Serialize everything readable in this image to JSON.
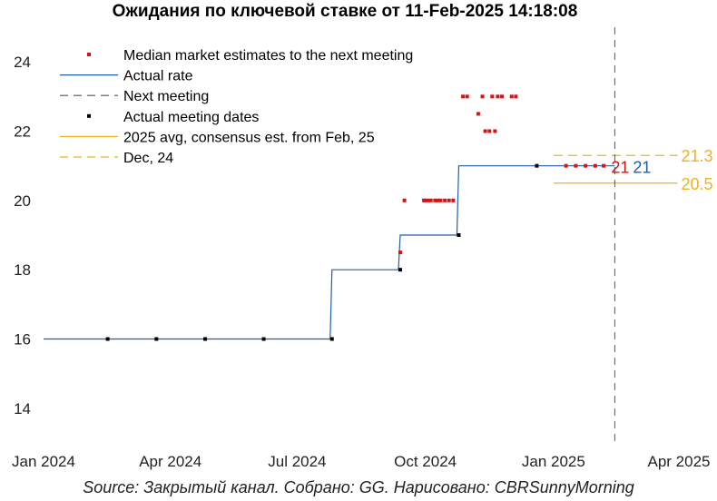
{
  "title": "Ожидания по ключевой ставке от 11-Feb-2025 14:18:08",
  "source": "Source: Закрытый канал. Собрано: GG. Нарисовано: CBRSunnyMorning",
  "chart_data": {
    "type": "line",
    "x_axis": {
      "ticks": [
        "2024-01-01",
        "2024-04-01",
        "2024-07-01",
        "2024-10-01",
        "2025-01-01",
        "2025-04-01"
      ],
      "tick_labels": [
        "Jan 2024",
        "Apr 2024",
        "Jul 2024",
        "Oct 2024",
        "Jan 2025",
        "Apr 2025"
      ],
      "range": [
        "2024-01-01",
        "2025-04-01"
      ]
    },
    "y_axis": {
      "ticks": [
        14,
        16,
        18,
        20,
        22,
        24
      ],
      "range": [
        13,
        25
      ]
    },
    "grid": false,
    "legend_placement": "top-left",
    "colors": {
      "median_estimates": "#dd1111",
      "actual_rate": "#1f5fa8",
      "next_meeting": "#555555",
      "meeting_dates": "#000000",
      "avg_consensus": "#f0b020",
      "dec24": "#f0b020",
      "annotation_red": "#dd1111",
      "annotation_blue": "#1f5fa8"
    },
    "legend": [
      {
        "label": "Median market estimates to the next meeting",
        "style": "marker",
        "color_key": "median_estimates"
      },
      {
        "label": "Actual rate",
        "style": "solid",
        "color_key": "actual_rate"
      },
      {
        "label": "Next meeting",
        "style": "dashed",
        "color_key": "next_meeting"
      },
      {
        "label": "Actual meeting dates",
        "style": "marker",
        "color_key": "meeting_dates"
      },
      {
        "label": "2025 avg, consensus est. from Feb, 25",
        "style": "solid",
        "color_key": "avg_consensus"
      },
      {
        "label": "Dec, 24",
        "style": "dashed",
        "color_key": "dec24"
      }
    ],
    "series": [
      {
        "name": "Actual rate",
        "steps": [
          {
            "date": "2024-01-01",
            "value": 16
          },
          {
            "date": "2024-07-26",
            "value": 18
          },
          {
            "date": "2024-09-13",
            "value": 19
          },
          {
            "date": "2024-10-25",
            "value": 21
          },
          {
            "date": "2025-02-14",
            "value": 21
          }
        ]
      },
      {
        "name": "Actual meeting dates",
        "points": [
          {
            "date": "2024-02-16",
            "value": 16
          },
          {
            "date": "2024-03-22",
            "value": 16
          },
          {
            "date": "2024-04-26",
            "value": 16
          },
          {
            "date": "2024-06-07",
            "value": 16
          },
          {
            "date": "2024-07-26",
            "value": 16
          },
          {
            "date": "2024-09-13",
            "value": 18
          },
          {
            "date": "2024-10-25",
            "value": 19
          },
          {
            "date": "2024-12-20",
            "value": 21
          }
        ]
      },
      {
        "name": "Median market estimates to the next meeting",
        "points": [
          {
            "date": "2024-09-13",
            "value": 18.5
          },
          {
            "date": "2024-09-16",
            "value": 20
          },
          {
            "date": "2024-09-30",
            "value": 20
          },
          {
            "date": "2024-10-01",
            "value": 20
          },
          {
            "date": "2024-10-03",
            "value": 20
          },
          {
            "date": "2024-10-05",
            "value": 20
          },
          {
            "date": "2024-10-08",
            "value": 20
          },
          {
            "date": "2024-10-10",
            "value": 20
          },
          {
            "date": "2024-10-12",
            "value": 20
          },
          {
            "date": "2024-10-15",
            "value": 20
          },
          {
            "date": "2024-10-18",
            "value": 20
          },
          {
            "date": "2024-10-21",
            "value": 20
          },
          {
            "date": "2024-10-28",
            "value": 23
          },
          {
            "date": "2024-10-31",
            "value": 23
          },
          {
            "date": "2024-11-08",
            "value": 22.5
          },
          {
            "date": "2024-11-11",
            "value": 23
          },
          {
            "date": "2024-11-13",
            "value": 22
          },
          {
            "date": "2024-11-16",
            "value": 22
          },
          {
            "date": "2024-11-18",
            "value": 23
          },
          {
            "date": "2024-11-20",
            "value": 22
          },
          {
            "date": "2024-11-22",
            "value": 23
          },
          {
            "date": "2024-11-25",
            "value": 23
          },
          {
            "date": "2024-12-02",
            "value": 23
          },
          {
            "date": "2024-12-05",
            "value": 23
          },
          {
            "date": "2025-01-10",
            "value": 21
          },
          {
            "date": "2025-01-17",
            "value": 21
          },
          {
            "date": "2025-01-24",
            "value": 21
          },
          {
            "date": "2025-01-31",
            "value": 21
          },
          {
            "date": "2025-02-06",
            "value": 21
          }
        ]
      }
    ],
    "next_meeting_date": "2025-02-14",
    "reference_lines": [
      {
        "name": "2025 avg, consensus est. from Feb, 25",
        "value": 20.5,
        "from": "2025-01-01",
        "to": "2025-03-31",
        "style": "solid",
        "label": "20.5"
      },
      {
        "name": "Dec, 24",
        "value": 21.3,
        "from": "2025-01-01",
        "to": "2025-03-31",
        "style": "dashed",
        "label": "21.3"
      }
    ],
    "annotations": [
      {
        "text": "21",
        "date": "2025-02-14",
        "value": 21,
        "color_key": "annotation_red"
      },
      {
        "text": "21",
        "date": "2025-02-14",
        "value": 21,
        "color_key": "annotation_blue"
      }
    ]
  }
}
